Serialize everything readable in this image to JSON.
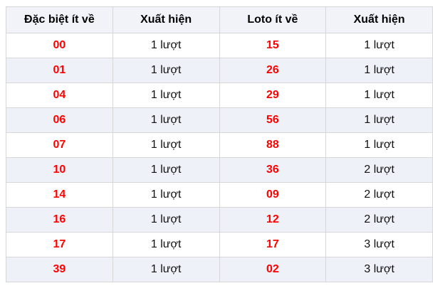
{
  "table": {
    "headers": [
      {
        "label": "Đặc biệt ít về"
      },
      {
        "label": "Xuất hiện"
      },
      {
        "label": "Loto ít về"
      },
      {
        "label": "Xuất hiện"
      }
    ],
    "rows": [
      {
        "special_number": "00",
        "special_count": "1 lượt",
        "loto_number": "15",
        "loto_count": "1 lượt"
      },
      {
        "special_number": "01",
        "special_count": "1 lượt",
        "loto_number": "26",
        "loto_count": "1 lượt"
      },
      {
        "special_number": "04",
        "special_count": "1 lượt",
        "loto_number": "29",
        "loto_count": "1 lượt"
      },
      {
        "special_number": "06",
        "special_count": "1 lượt",
        "loto_number": "56",
        "loto_count": "1 lượt"
      },
      {
        "special_number": "07",
        "special_count": "1 lượt",
        "loto_number": "88",
        "loto_count": "1 lượt"
      },
      {
        "special_number": "10",
        "special_count": "1 lượt",
        "loto_number": "36",
        "loto_count": "2 lượt"
      },
      {
        "special_number": "14",
        "special_count": "1 lượt",
        "loto_number": "09",
        "loto_count": "2 lượt"
      },
      {
        "special_number": "16",
        "special_count": "1 lượt",
        "loto_number": "12",
        "loto_count": "2 lượt"
      },
      {
        "special_number": "17",
        "special_count": "1 lượt",
        "loto_number": "17",
        "loto_count": "3 lượt"
      },
      {
        "special_number": "39",
        "special_count": "1 lượt",
        "loto_number": "02",
        "loto_count": "3 lượt"
      }
    ]
  },
  "colors": {
    "number_red": "#ff0000",
    "header_bg": "#f2f3f8",
    "stripe_bg": "#eef1f8",
    "border": "#d6d6d6",
    "text": "#111111"
  }
}
